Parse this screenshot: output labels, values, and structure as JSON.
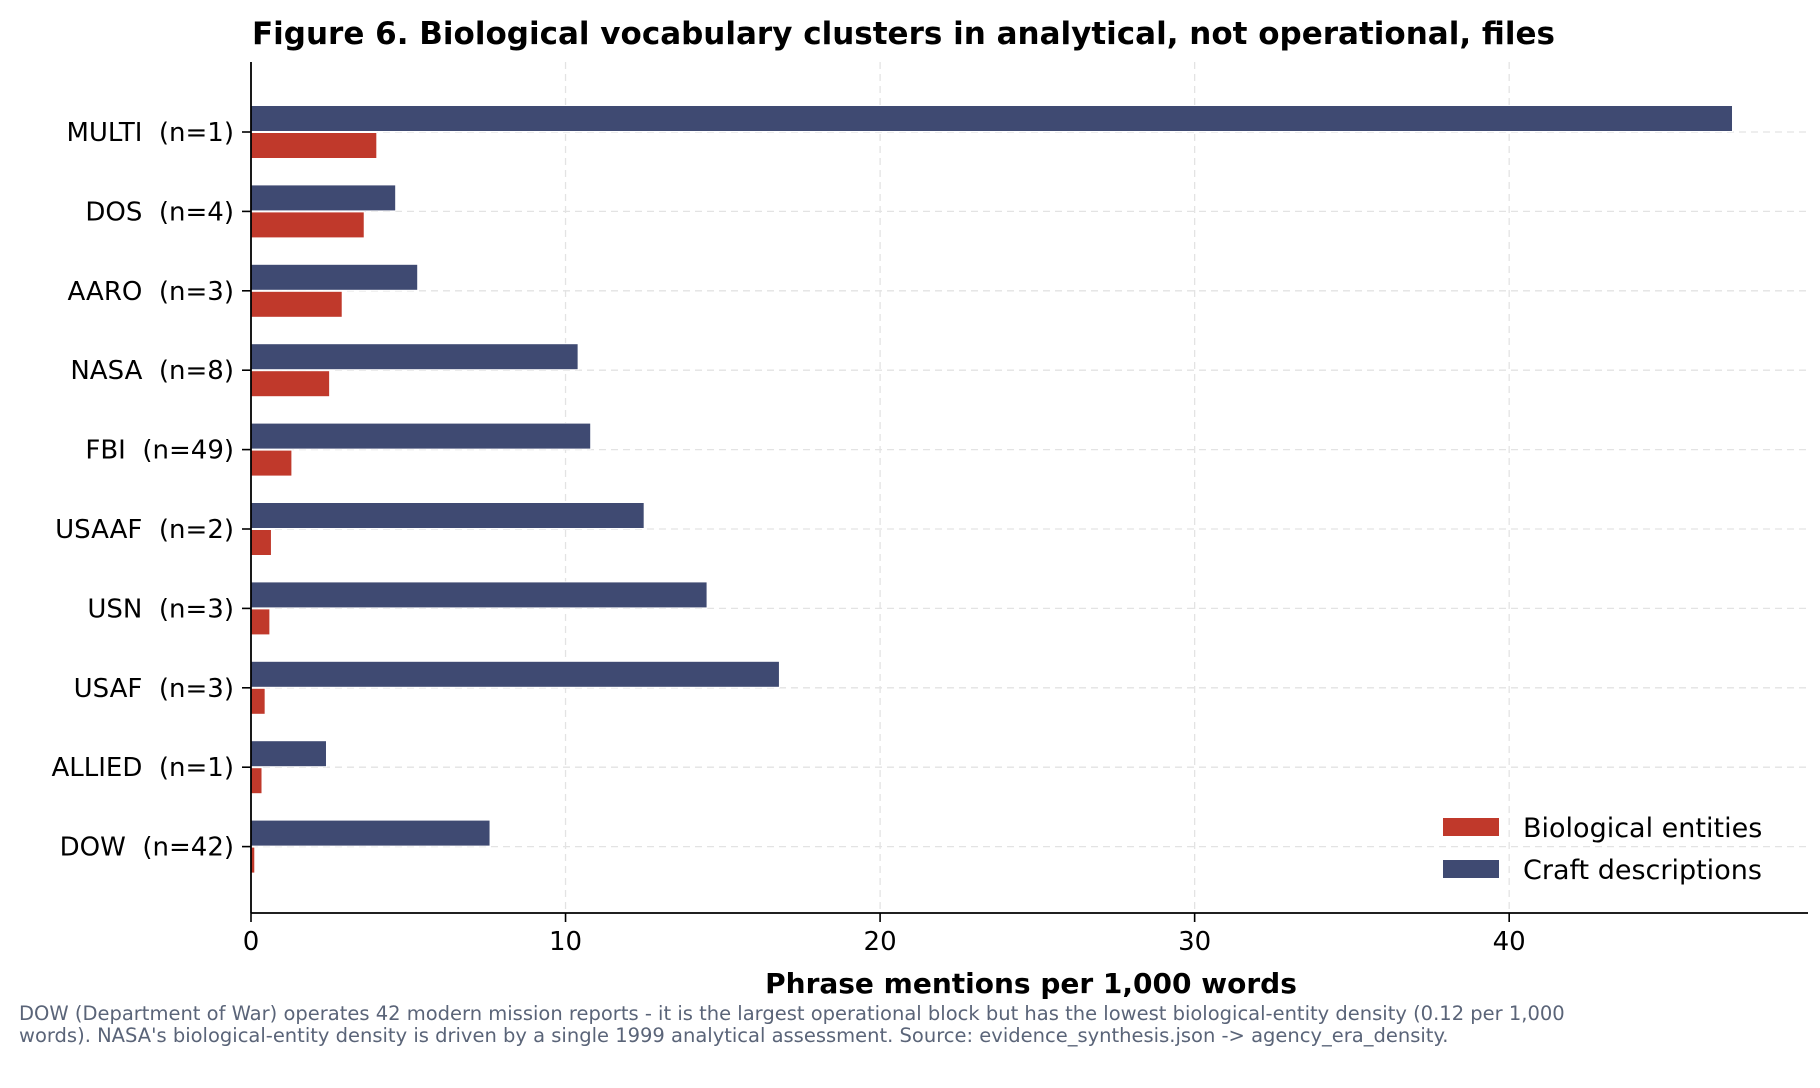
{
  "chart_data": {
    "type": "bar",
    "orientation": "horizontal",
    "title": "Figure 6. Biological vocabulary clusters in analytical, not operational, files",
    "xlabel": "Phrase mentions per 1,000 words",
    "ylabel": "",
    "xlim": [
      0,
      49.5
    ],
    "xticks": [
      0,
      10,
      20,
      30,
      40
    ],
    "categories": [
      "MULTI  (n=1)",
      "DOS  (n=4)",
      "AARO  (n=3)",
      "NASA  (n=8)",
      "FBI  (n=49)",
      "USAAF  (n=2)",
      "USN  (n=3)",
      "USAF  (n=3)",
      "ALLIED  (n=1)",
      "DOW  (n=42)"
    ],
    "series": [
      {
        "name": "Craft descriptions",
        "color": "#3f4a72",
        "values": [
          47.1,
          4.6,
          5.3,
          10.4,
          10.8,
          12.5,
          14.5,
          16.8,
          2.4,
          7.6
        ]
      },
      {
        "name": "Biological entities",
        "color": "#c0392b",
        "values": [
          4.0,
          3.6,
          2.9,
          2.5,
          1.3,
          0.65,
          0.6,
          0.45,
          0.35,
          0.12
        ]
      }
    ],
    "legend": {
      "position": "bottom-right",
      "order": [
        "Biological entities",
        "Craft descriptions"
      ]
    },
    "grid": true
  },
  "caption": "DOW (Department of War) operates 42 modern mission reports - it is the largest operational block but has the lowest biological-entity density (0.12 per 1,000 words). NASA's biological-entity density is driven by a single 1999 analytical assessment. Source: evidence_synthesis.json -> agency_era_density."
}
